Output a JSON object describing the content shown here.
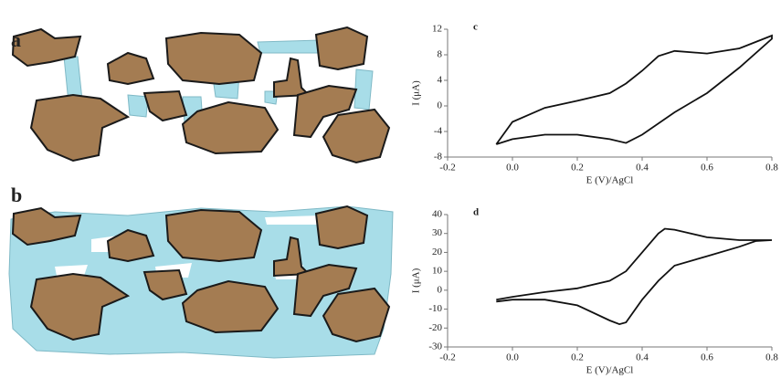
{
  "illustrations": [
    {
      "label": "a"
    },
    {
      "label": "b"
    }
  ],
  "chart_data": [
    {
      "type": "line",
      "title": "c",
      "x_label": "E (V)/AgCl",
      "y_label": "I (μA)",
      "x": [
        -0.05,
        0.0,
        0.1,
        0.2,
        0.3,
        0.35,
        0.4,
        0.45,
        0.5,
        0.6,
        0.7,
        0.8,
        0.8,
        0.7,
        0.6,
        0.5,
        0.4,
        0.35,
        0.3,
        0.2,
        0.1,
        0.0,
        -0.05
      ],
      "series": [
        {
          "color": "#111111",
          "values": [
            -6,
            -2.5,
            -0.3,
            0.8,
            2,
            3.5,
            5.5,
            7.8,
            8.6,
            8.2,
            9,
            11,
            10.5,
            6,
            2,
            -1,
            -4.5,
            -5.8,
            -5.2,
            -4.5,
            -4.5,
            -5.2,
            -6
          ]
        }
      ],
      "xlim": [
        -0.2,
        0.8
      ],
      "ylim": [
        -8,
        12
      ],
      "xticks": [
        -0.2,
        {
          "value": 0,
          "label": "0.0"
        },
        0.2,
        0.4,
        0.6,
        0.8
      ],
      "yticks": [
        -8,
        -4,
        0,
        4,
        8,
        12
      ]
    },
    {
      "type": "line",
      "title": "d",
      "x_label": "E (V)/AgCl",
      "y_label": "I (μA)",
      "x": [
        -0.05,
        0.0,
        0.1,
        0.2,
        0.3,
        0.35,
        0.4,
        0.45,
        0.47,
        0.5,
        0.6,
        0.7,
        0.8,
        0.75,
        0.7,
        0.6,
        0.5,
        0.45,
        0.4,
        0.35,
        0.33,
        0.3,
        0.2,
        0.1,
        0.0,
        -0.05
      ],
      "series": [
        {
          "color": "#111111",
          "values": [
            -5,
            -3.5,
            -1,
            1,
            5,
            10,
            20,
            30,
            32.5,
            32,
            28,
            26.5,
            26.5,
            26,
            23,
            18,
            13,
            5,
            -5,
            -17,
            -18,
            -16,
            -8,
            -5,
            -5,
            -6
          ]
        }
      ],
      "xlim": [
        -0.2,
        0.8
      ],
      "ylim": [
        -30,
        40
      ],
      "xticks": [
        -0.2,
        {
          "value": 0,
          "label": "0.0"
        },
        0.2,
        0.4,
        0.6,
        0.8
      ],
      "yticks": [
        -30,
        -20,
        -10,
        0,
        10,
        20,
        30,
        40
      ]
    }
  ]
}
